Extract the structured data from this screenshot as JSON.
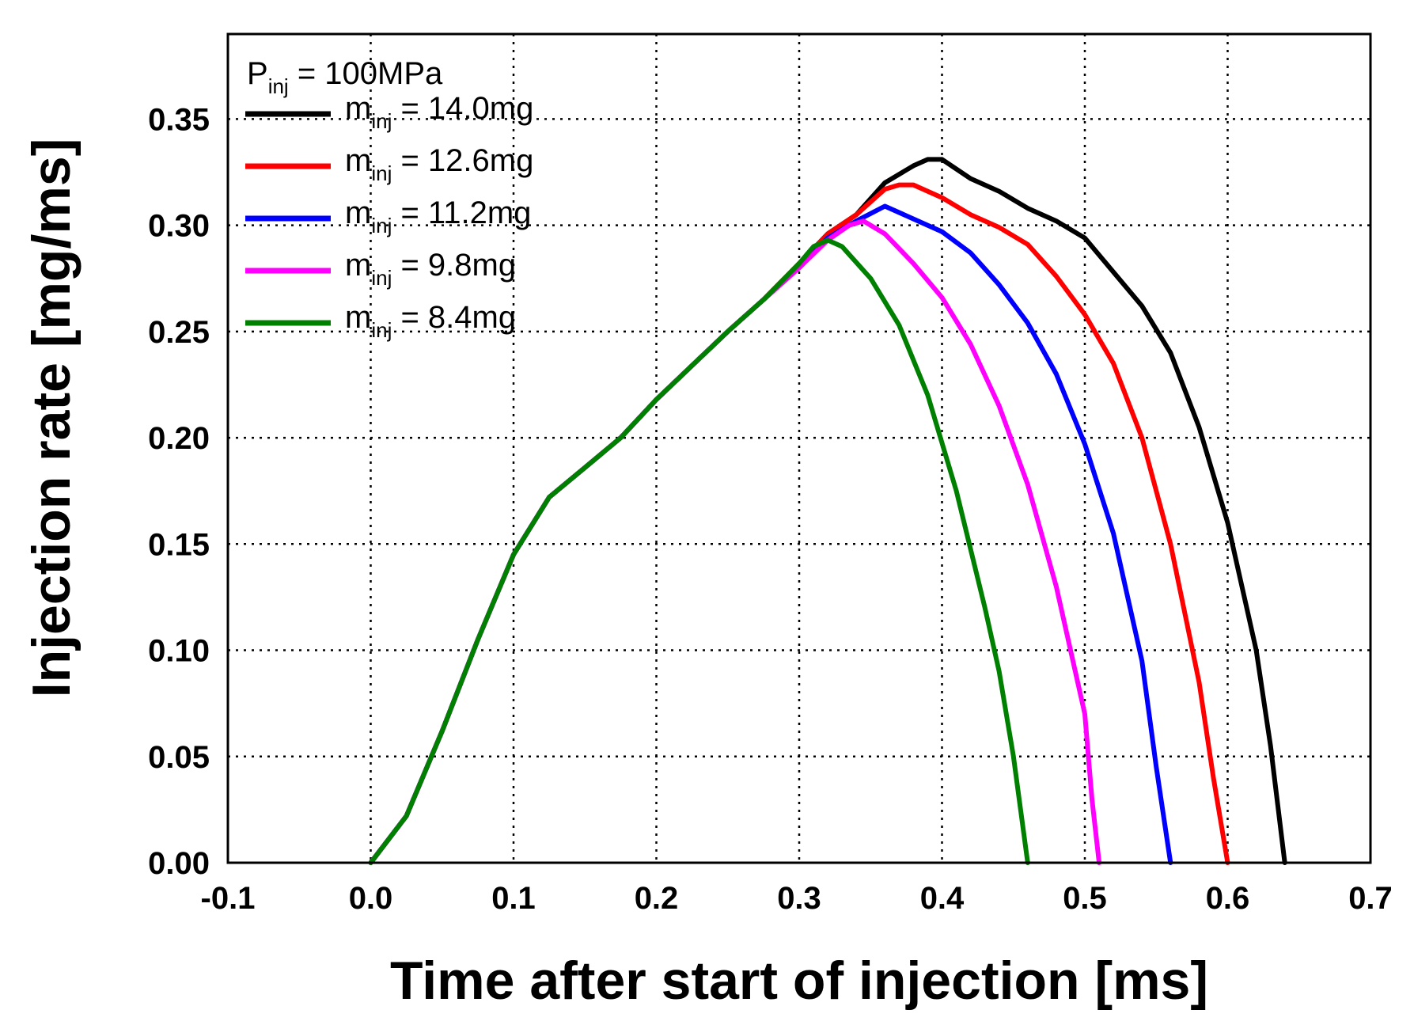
{
  "chart_data": {
    "type": "line",
    "xlabel": "Time after start of injection [ms]",
    "ylabel": "Injection rate [mg/ms]",
    "xlim": [
      -0.1,
      0.7
    ],
    "ylim": [
      0.0,
      0.39
    ],
    "x_ticks": [
      "-0.1",
      "0.0",
      "0.1",
      "0.2",
      "0.3",
      "0.4",
      "0.5",
      "0.6",
      "0.7"
    ],
    "x_tick_values": [
      -0.1,
      0.0,
      0.1,
      0.2,
      0.3,
      0.4,
      0.5,
      0.6,
      0.7
    ],
    "y_ticks": [
      "0.00",
      "0.05",
      "0.10",
      "0.15",
      "0.20",
      "0.25",
      "0.30",
      "0.35"
    ],
    "y_tick_values": [
      0.0,
      0.05,
      0.1,
      0.15,
      0.2,
      0.25,
      0.3,
      0.35
    ],
    "grid": true,
    "legend_position": "top-left",
    "legend_header": {
      "main": "P",
      "sub": "inj",
      "rest": " = 100MPa"
    },
    "series": [
      {
        "name": "m_inj = 14.0mg",
        "label_main": "m",
        "label_sub": "inj",
        "label_rest": " = 14.0mg",
        "color": "#000000",
        "x": [
          0.0,
          0.025,
          0.05,
          0.075,
          0.1,
          0.125,
          0.15,
          0.175,
          0.2,
          0.225,
          0.25,
          0.275,
          0.3,
          0.32,
          0.34,
          0.36,
          0.38,
          0.39,
          0.4,
          0.42,
          0.44,
          0.46,
          0.48,
          0.5,
          0.52,
          0.54,
          0.56,
          0.58,
          0.6,
          0.62,
          0.63,
          0.64
        ],
        "y": [
          0.0,
          0.022,
          0.062,
          0.105,
          0.145,
          0.172,
          0.186,
          0.2,
          0.218,
          0.234,
          0.25,
          0.265,
          0.282,
          0.296,
          0.305,
          0.32,
          0.328,
          0.331,
          0.331,
          0.322,
          0.316,
          0.308,
          0.302,
          0.294,
          0.278,
          0.262,
          0.24,
          0.205,
          0.16,
          0.1,
          0.055,
          0.0
        ]
      },
      {
        "name": "m_inj = 12.6mg",
        "label_main": "m",
        "label_sub": "inj",
        "label_rest": " = 12.6mg",
        "color": "#ff0000",
        "x": [
          0.0,
          0.025,
          0.05,
          0.075,
          0.1,
          0.125,
          0.15,
          0.175,
          0.2,
          0.225,
          0.25,
          0.275,
          0.3,
          0.32,
          0.34,
          0.36,
          0.37,
          0.38,
          0.4,
          0.42,
          0.44,
          0.46,
          0.48,
          0.5,
          0.52,
          0.54,
          0.56,
          0.58,
          0.59,
          0.6
        ],
        "y": [
          0.0,
          0.022,
          0.062,
          0.105,
          0.145,
          0.172,
          0.186,
          0.2,
          0.218,
          0.234,
          0.25,
          0.265,
          0.282,
          0.296,
          0.305,
          0.317,
          0.319,
          0.319,
          0.313,
          0.305,
          0.299,
          0.291,
          0.276,
          0.258,
          0.235,
          0.2,
          0.15,
          0.085,
          0.04,
          0.0
        ]
      },
      {
        "name": "m_inj = 11.2mg",
        "label_main": "m",
        "label_sub": "inj",
        "label_rest": " = 11.2mg",
        "color": "#0000ff",
        "x": [
          0.0,
          0.025,
          0.05,
          0.075,
          0.1,
          0.125,
          0.15,
          0.175,
          0.2,
          0.225,
          0.25,
          0.275,
          0.3,
          0.32,
          0.34,
          0.36,
          0.38,
          0.4,
          0.42,
          0.44,
          0.46,
          0.48,
          0.5,
          0.52,
          0.54,
          0.55,
          0.56
        ],
        "y": [
          0.0,
          0.022,
          0.062,
          0.105,
          0.145,
          0.172,
          0.186,
          0.2,
          0.218,
          0.234,
          0.25,
          0.265,
          0.28,
          0.294,
          0.302,
          0.309,
          0.303,
          0.297,
          0.287,
          0.272,
          0.254,
          0.23,
          0.197,
          0.155,
          0.095,
          0.045,
          0.0
        ]
      },
      {
        "name": "m_inj = 9.8mg",
        "label_main": "m",
        "label_sub": "inj",
        "label_rest": " = 9.8mg",
        "color": "#ff00ff",
        "x": [
          0.0,
          0.025,
          0.05,
          0.075,
          0.1,
          0.125,
          0.15,
          0.175,
          0.2,
          0.225,
          0.25,
          0.275,
          0.3,
          0.32,
          0.335,
          0.345,
          0.36,
          0.38,
          0.4,
          0.42,
          0.44,
          0.46,
          0.48,
          0.5,
          0.505,
          0.51
        ],
        "y": [
          0.0,
          0.022,
          0.062,
          0.105,
          0.145,
          0.172,
          0.186,
          0.2,
          0.218,
          0.234,
          0.25,
          0.265,
          0.28,
          0.293,
          0.3,
          0.302,
          0.296,
          0.282,
          0.266,
          0.244,
          0.215,
          0.178,
          0.13,
          0.07,
          0.03,
          0.0
        ]
      },
      {
        "name": "m_inj = 8.4mg",
        "label_main": "m",
        "label_sub": "inj",
        "label_rest": " = 8.4mg",
        "color": "#008000",
        "x": [
          0.0,
          0.025,
          0.05,
          0.075,
          0.1,
          0.125,
          0.15,
          0.175,
          0.2,
          0.225,
          0.25,
          0.275,
          0.3,
          0.31,
          0.32,
          0.33,
          0.35,
          0.37,
          0.39,
          0.41,
          0.43,
          0.44,
          0.45,
          0.455,
          0.46
        ],
        "y": [
          0.0,
          0.022,
          0.062,
          0.105,
          0.145,
          0.172,
          0.186,
          0.2,
          0.218,
          0.234,
          0.25,
          0.265,
          0.282,
          0.29,
          0.293,
          0.29,
          0.275,
          0.253,
          0.22,
          0.175,
          0.12,
          0.09,
          0.05,
          0.025,
          0.0
        ]
      }
    ]
  }
}
